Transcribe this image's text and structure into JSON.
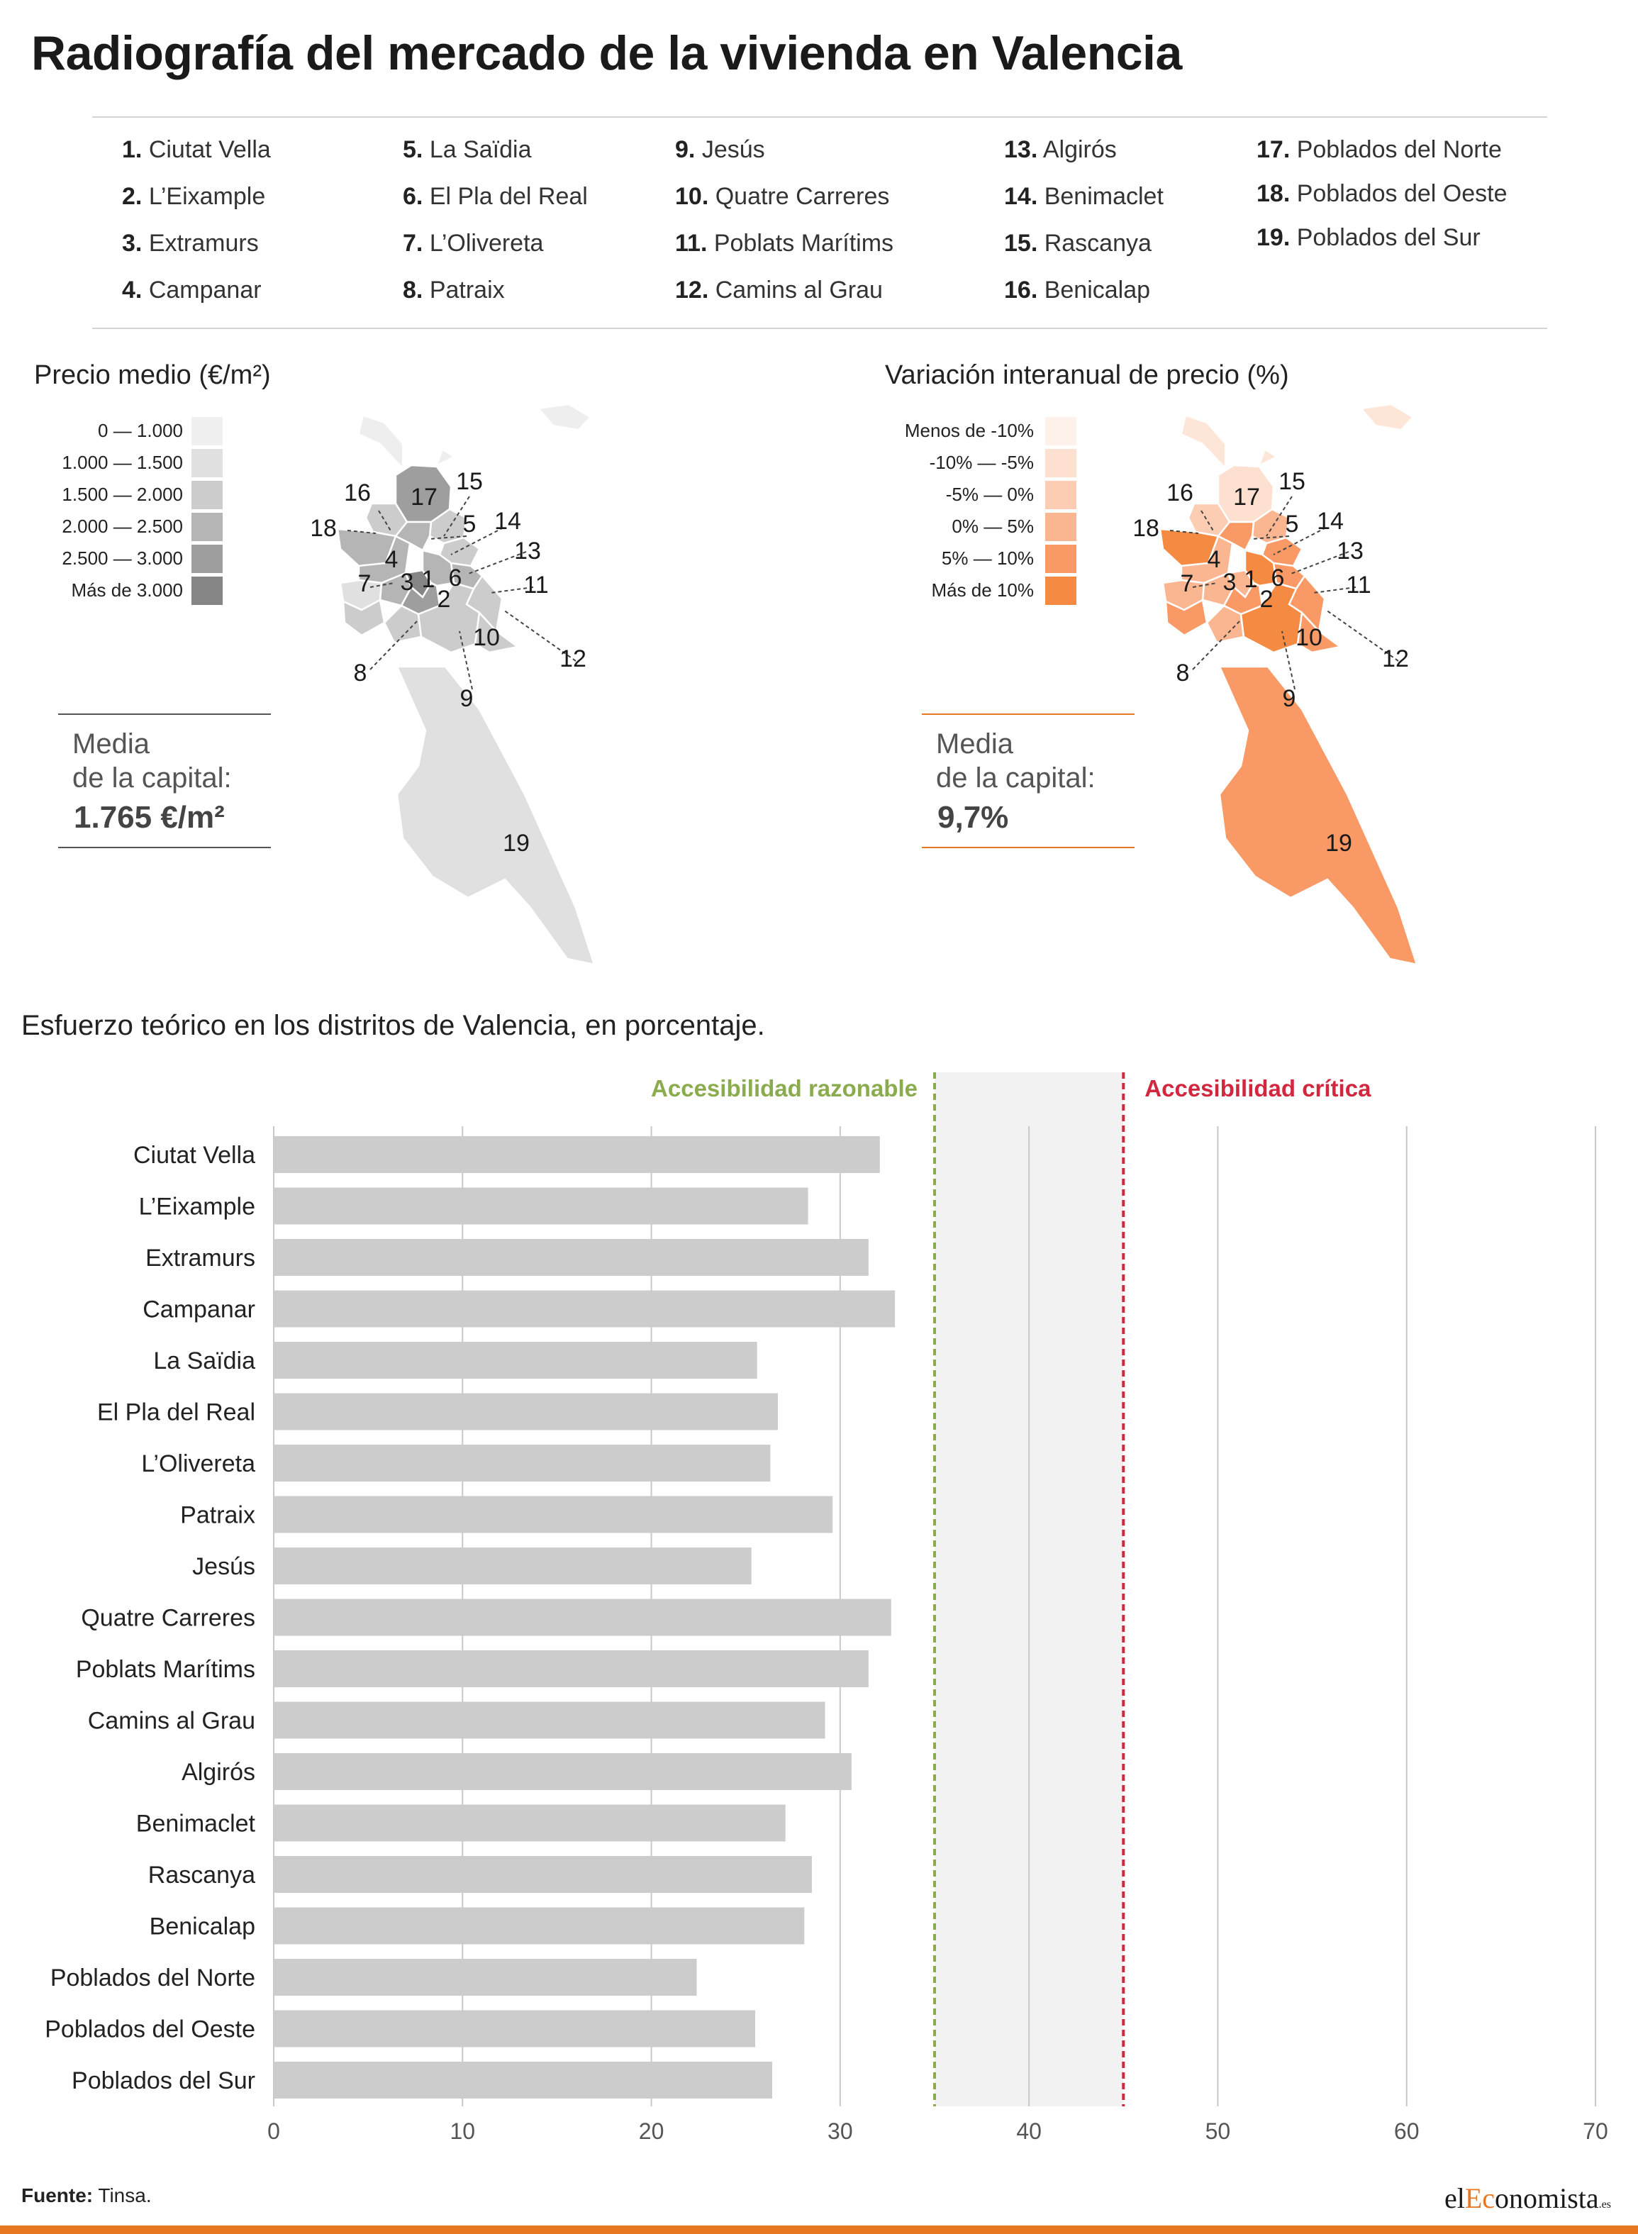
{
  "title": "Radiografía del mercado de la vivienda en Valencia",
  "districts": [
    {
      "num": "1.",
      "name": "Ciutat Vella"
    },
    {
      "num": "2.",
      "name": "L’Eixample"
    },
    {
      "num": "3.",
      "name": "Extramurs"
    },
    {
      "num": "4.",
      "name": "Campanar"
    },
    {
      "num": "5.",
      "name": "La Saïdia"
    },
    {
      "num": "6.",
      "name": "El Pla del Real"
    },
    {
      "num": "7.",
      "name": "L’Olivereta"
    },
    {
      "num": "8.",
      "name": "Patraix"
    },
    {
      "num": "9.",
      "name": "Jesús"
    },
    {
      "num": "10.",
      "name": "Quatre Carreres"
    },
    {
      "num": "11.",
      "name": "Poblats Marítims"
    },
    {
      "num": "12.",
      "name": "Camins al Grau"
    },
    {
      "num": "13.",
      "name": "Algirós"
    },
    {
      "num": "14.",
      "name": "Benimaclet"
    },
    {
      "num": "15.",
      "name": "Rascanya"
    },
    {
      "num": "16.",
      "name": "Benicalap"
    },
    {
      "num": "17.",
      "name": "Poblados del Norte"
    },
    {
      "num": "18.",
      "name": "Poblados del Oeste"
    },
    {
      "num": "19.",
      "name": "Poblados del Sur"
    }
  ],
  "map_price": {
    "title": "Precio medio (€/m²)",
    "scale": [
      "0 — 1.000",
      "1.000 — 1.500",
      "1.500 — 2.000",
      "2.000 — 2.500",
      "2.500 — 3.000",
      "Más de 3.000"
    ],
    "colors": [
      "#f0f0f0",
      "#e0e0e0",
      "#cccccc",
      "#b5b5b5",
      "#9e9e9e",
      "#858585"
    ],
    "media_label_1": "Media",
    "media_label_2": "de la capital:",
    "media_value": "1.765 €/m²",
    "line_color": "#555555"
  },
  "map_variation": {
    "title": "Variación interanual de precio (%)",
    "scale": [
      "Menos de -10%",
      "-10% — -5%",
      "-5% — 0%",
      "0% — 5%",
      "5% — 10%",
      "Más de 10%"
    ],
    "colors": [
      "#fef1ea",
      "#fde0d0",
      "#fccdb3",
      "#fab591",
      "#f99a66",
      "#f58a42"
    ],
    "media_label_1": "Media",
    "media_label_2": "de la capital:",
    "media_value": "9,7%",
    "line_color": "#e87722"
  },
  "chart_data": {
    "type": "bar",
    "orientation": "horizontal",
    "title": "Esfuerzo teórico en los distritos de Valencia, en porcentaje.",
    "categories": [
      "Ciutat Vella",
      "L’Eixample",
      "Extramurs",
      "Campanar",
      "La Saïdia",
      "El Pla del Real",
      "L’Olivereta",
      "Patraix",
      "Jesús",
      "Quatre Carreres",
      "Poblats Marítims",
      "Camins al Grau",
      "Algirós",
      "Benimaclet",
      "Rascanya",
      "Benicalap",
      "Poblados del Norte",
      "Poblados del Oeste",
      "Poblados del Sur"
    ],
    "values": [
      32.1,
      28.3,
      31.5,
      32.9,
      25.6,
      26.7,
      26.3,
      29.6,
      25.3,
      32.7,
      31.5,
      29.2,
      30.6,
      27.1,
      28.5,
      28.1,
      22.4,
      25.5,
      26.4
    ],
    "xlim": [
      0,
      70
    ],
    "xticks": [
      0,
      10,
      20,
      30,
      40,
      50,
      60,
      70
    ],
    "thresholds": [
      {
        "label": "Accesibilidad razonable",
        "value": 35,
        "color": "#8aac4e"
      },
      {
        "label": "Accesibilidad crítica",
        "value": 45,
        "color": "#d2283f"
      }
    ],
    "grid": true,
    "bar_color": "#cccccc"
  },
  "source_label": "Fuente:",
  "source_text": "Tinsa.",
  "logo": {
    "pre": "el",
    "accent": "Ec",
    "post": "onomista",
    "suffix": ".es"
  }
}
